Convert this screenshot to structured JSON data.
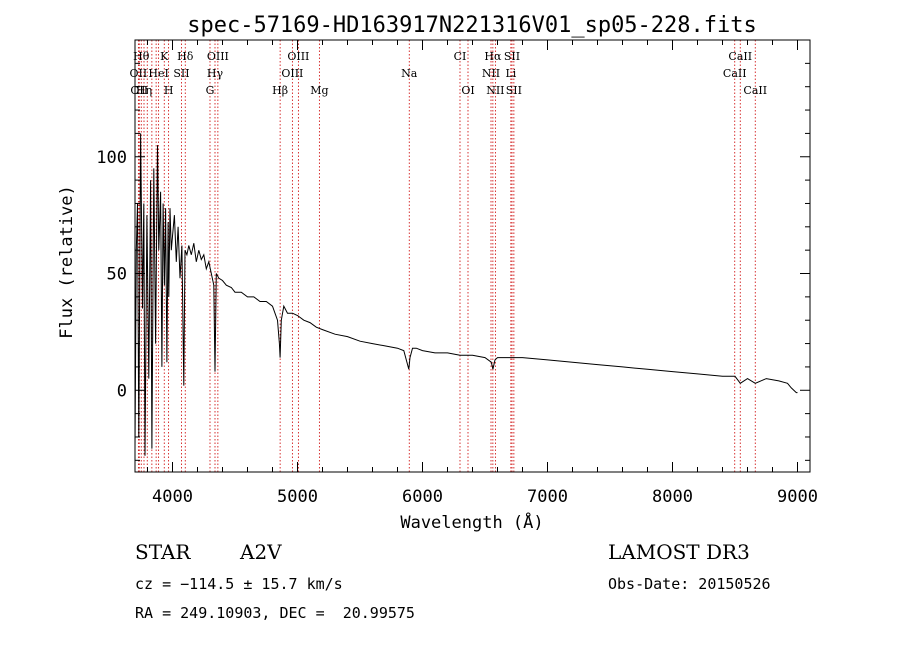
{
  "chart_data": {
    "type": "line",
    "title": "spec-57169-HD163917N221316V01_sp05-228.fits",
    "xlabel": "Wavelength (Å)",
    "ylabel": "Flux (relative)",
    "xlim": [
      3700,
      9100
    ],
    "ylim": [
      -35,
      150
    ],
    "xticks": [
      4000,
      5000,
      6000,
      7000,
      8000,
      9000
    ],
    "yticks": [
      0,
      50,
      100
    ],
    "series": [
      {
        "name": "spectrum",
        "x": [
          3700,
          3710,
          3720,
          3730,
          3745,
          3760,
          3770,
          3780,
          3795,
          3810,
          3825,
          3835,
          3850,
          3865,
          3880,
          3890,
          3905,
          3915,
          3925,
          3935,
          3945,
          3955,
          3965,
          3970,
          3980,
          3990,
          4000,
          4015,
          4030,
          4045,
          4060,
          4075,
          4090,
          4100,
          4115,
          4130,
          4150,
          4170,
          4190,
          4210,
          4230,
          4250,
          4270,
          4290,
          4310,
          4330,
          4340,
          4350,
          4370,
          4400,
          4430,
          4470,
          4500,
          4550,
          4600,
          4650,
          4700,
          4750,
          4800,
          4840,
          4855,
          4861,
          4870,
          4890,
          4920,
          4960,
          5000,
          5050,
          5100,
          5150,
          5200,
          5300,
          5400,
          5500,
          5600,
          5700,
          5800,
          5850,
          5890,
          5900,
          5920,
          5950,
          6000,
          6100,
          6200,
          6300,
          6400,
          6500,
          6550,
          6563,
          6580,
          6600,
          6700,
          6800,
          7000,
          7200,
          7400,
          7600,
          7800,
          8000,
          8200,
          8400,
          8500,
          8542,
          8600,
          8662,
          8750,
          8850,
          8920,
          8950,
          8990,
          9000
        ],
        "values": [
          -25,
          60,
          80,
          -20,
          110,
          35,
          80,
          -28,
          75,
          5,
          90,
          -25,
          95,
          20,
          105,
          60,
          85,
          10,
          80,
          45,
          78,
          12,
          72,
          40,
          78,
          60,
          66,
          75,
          55,
          70,
          48,
          62,
          2,
          60,
          58,
          62,
          58,
          63,
          55,
          60,
          56,
          58,
          52,
          55,
          50,
          45,
          8,
          50,
          48,
          47,
          45,
          44,
          42,
          42,
          40,
          40,
          38,
          38,
          36,
          30,
          20,
          14,
          30,
          36,
          33,
          33,
          32,
          30,
          29,
          27,
          26,
          24,
          23,
          21,
          20,
          19,
          18,
          17,
          9,
          14,
          18,
          18,
          17,
          16,
          16,
          15,
          15,
          14,
          12,
          9,
          13,
          14,
          14,
          14,
          13,
          12,
          11,
          10,
          9,
          8,
          7,
          6,
          6,
          3,
          5,
          3,
          5,
          4,
          3,
          1,
          -1,
          -1
        ]
      }
    ],
    "spectral_lines": [
      {
        "wl": 3727,
        "label": "OII",
        "row": 2
      },
      {
        "wl": 3734,
        "label": "OII",
        "row": 3
      },
      {
        "wl": 3750,
        "label": "Hθ",
        "row": 1
      },
      {
        "wl": 3772,
        "label": "Hη",
        "row": 3
      },
      {
        "wl": 3798,
        "label": "",
        "row": 0
      },
      {
        "wl": 3835,
        "label": "",
        "row": 0
      },
      {
        "wl": 3869,
        "label": "",
        "row": 0
      },
      {
        "wl": 3889,
        "label": "HeI",
        "row": 2
      },
      {
        "wl": 3934,
        "label": "K",
        "row": 1
      },
      {
        "wl": 3969,
        "label": "H",
        "row": 3
      },
      {
        "wl": 4072,
        "label": "SII",
        "row": 2
      },
      {
        "wl": 4102,
        "label": "Hδ",
        "row": 1
      },
      {
        "wl": 4300,
        "label": "G",
        "row": 3
      },
      {
        "wl": 4340,
        "label": "Hγ",
        "row": 2
      },
      {
        "wl": 4363,
        "label": "OIII",
        "row": 1
      },
      {
        "wl": 4861,
        "label": "Hβ",
        "row": 3
      },
      {
        "wl": 4959,
        "label": "OIII",
        "row": 2
      },
      {
        "wl": 5007,
        "label": "OIII",
        "row": 1
      },
      {
        "wl": 5175,
        "label": "Mg",
        "row": 3
      },
      {
        "wl": 5894,
        "label": "Na",
        "row": 2
      },
      {
        "wl": 6300,
        "label": "CI",
        "row": 1
      },
      {
        "wl": 6364,
        "label": "OI",
        "row": 3
      },
      {
        "wl": 6548,
        "label": "NII",
        "row": 2
      },
      {
        "wl": 6563,
        "label": "Hα",
        "row": 1
      },
      {
        "wl": 6583,
        "label": "NII",
        "row": 3
      },
      {
        "wl": 6707,
        "label": "Li",
        "row": 2
      },
      {
        "wl": 6716,
        "label": "SII",
        "row": 1
      },
      {
        "wl": 6731,
        "label": "SII",
        "row": 3
      },
      {
        "wl": 8498,
        "label": "CaII",
        "row": 2
      },
      {
        "wl": 8542,
        "label": "CaII",
        "row": 1
      },
      {
        "wl": 8662,
        "label": "CaII",
        "row": 3
      }
    ]
  },
  "info": {
    "class_label": "STAR",
    "subclass": "A2V",
    "cz": "cz = −114.5 ± 15.7 km/s",
    "radec": "RA = 249.10903, DEC =  20.99575",
    "survey": "LAMOST DR3",
    "obs_date": "Obs-Date: 20150526"
  },
  "colors": {
    "line": "#000000",
    "marker": "#cc0000"
  }
}
